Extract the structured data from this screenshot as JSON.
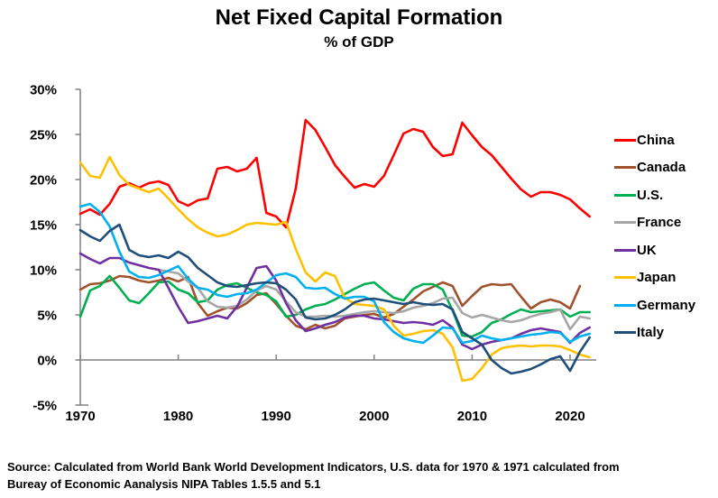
{
  "header": {
    "title": "Net Fixed Capital Formation",
    "subtitle": "% of GDP"
  },
  "source": {
    "line1": "Source:  Calculated from World Bank World Development Indicators, U.S. data for 1970 & 1971 calculated from",
    "line2": "Bureay of Economic Aanalysis NIPA Tables 1.5.5 and 5.1"
  },
  "chart_data": {
    "type": "line",
    "title": "Net Fixed Capital Formation",
    "subtitle": "% of GDP",
    "xlabel": "",
    "ylabel": "",
    "ylim": [
      -5,
      30
    ],
    "grid": "zero-line-only",
    "legend_position": "right",
    "axis_color": "#808080",
    "x": [
      1970,
      1971,
      1972,
      1973,
      1974,
      1975,
      1976,
      1977,
      1978,
      1979,
      1980,
      1981,
      1982,
      1983,
      1984,
      1985,
      1986,
      1987,
      1988,
      1989,
      1990,
      1991,
      1992,
      1993,
      1994,
      1995,
      1996,
      1997,
      1998,
      1999,
      2000,
      2001,
      2002,
      2003,
      2004,
      2005,
      2006,
      2007,
      2008,
      2009,
      2010,
      2011,
      2012,
      2013,
      2014,
      2015,
      2016,
      2017,
      2018,
      2019,
      2020,
      2021,
      2022
    ],
    "x_ticks": [
      1970,
      1980,
      1990,
      2000,
      2010,
      2020
    ],
    "y_ticks": [
      {
        "label": "30%",
        "value": 30
      },
      {
        "label": "25%",
        "value": 25
      },
      {
        "label": "20%",
        "value": 20
      },
      {
        "label": "15%",
        "value": 15
      },
      {
        "label": "10%",
        "value": 10
      },
      {
        "label": "5%",
        "value": 5
      },
      {
        "label": "0%",
        "value": 0
      },
      {
        "label": "-5%",
        "value": -5
      }
    ],
    "series": [
      {
        "name": "China",
        "color": "#FE0000",
        "values": [
          16.2,
          16.7,
          16.1,
          17.3,
          19.2,
          19.6,
          19.1,
          19.6,
          19.8,
          19.4,
          17.6,
          17.1,
          17.7,
          17.9,
          21.2,
          21.4,
          20.9,
          21.2,
          22.4,
          16.3,
          15.9,
          14.7,
          19.0,
          26.6,
          25.5,
          23.6,
          21.6,
          20.3,
          19.1,
          19.5,
          19.2,
          20.4,
          22.7,
          25.1,
          25.6,
          25.3,
          23.6,
          22.6,
          22.8,
          26.3,
          24.9,
          23.6,
          22.7,
          21.4,
          20.1,
          18.9,
          18.1,
          18.6,
          18.6,
          18.3,
          17.8,
          16.8,
          15.9
        ]
      },
      {
        "name": "Canada",
        "color": "#A0522D",
        "values": [
          7.8,
          8.4,
          8.5,
          8.8,
          9.3,
          9.2,
          8.8,
          8.6,
          8.8,
          9.1,
          8.7,
          9.2,
          6.3,
          4.9,
          5.4,
          5.8,
          5.7,
          6.3,
          7.2,
          7.4,
          6.2,
          4.9,
          3.8,
          3.4,
          3.9,
          3.5,
          3.8,
          4.6,
          4.8,
          5.0,
          5.1,
          4.7,
          5.1,
          5.9,
          6.7,
          7.6,
          8.1,
          8.6,
          8.2,
          6.0,
          7.1,
          8.1,
          8.4,
          8.3,
          8.4,
          7.0,
          5.7,
          6.4,
          6.7,
          6.4,
          5.7,
          8.2,
          null
        ]
      },
      {
        "name": "U.S.",
        "color": "#00B050",
        "values": [
          4.8,
          7.7,
          8.2,
          9.3,
          8.0,
          6.6,
          6.3,
          7.4,
          8.6,
          8.7,
          7.8,
          7.4,
          6.4,
          6.6,
          7.8,
          8.3,
          8.5,
          8.0,
          7.5,
          7.2,
          6.5,
          4.8,
          5.0,
          5.6,
          6.0,
          6.2,
          6.7,
          7.3,
          7.9,
          8.4,
          8.6,
          7.7,
          6.9,
          6.6,
          7.9,
          8.4,
          8.4,
          7.8,
          5.5,
          2.7,
          2.6,
          3.1,
          4.1,
          4.5,
          5.1,
          5.6,
          5.3,
          5.4,
          5.5,
          5.6,
          4.8,
          5.3,
          5.3
        ]
      },
      {
        "name": "France",
        "color": "#A6A6A6",
        "values": [
          null,
          null,
          null,
          null,
          null,
          null,
          null,
          null,
          10.0,
          9.8,
          9.6,
          8.7,
          8.0,
          6.5,
          5.9,
          5.8,
          6.0,
          6.7,
          7.7,
          8.2,
          7.8,
          6.5,
          5.3,
          4.8,
          4.8,
          4.9,
          4.8,
          4.9,
          5.1,
          5.3,
          5.4,
          5.3,
          5.2,
          5.4,
          5.8,
          6.0,
          6.3,
          6.8,
          6.9,
          5.2,
          4.7,
          5.0,
          4.7,
          4.4,
          4.2,
          4.4,
          4.8,
          5.1,
          5.3,
          5.6,
          3.4,
          4.8,
          4.6
        ]
      },
      {
        "name": "UK",
        "color": "#7030A0",
        "values": [
          11.8,
          11.2,
          10.7,
          11.3,
          11.3,
          10.8,
          10.5,
          10.2,
          10.0,
          8.0,
          5.9,
          4.1,
          4.3,
          4.6,
          4.9,
          4.6,
          5.9,
          8.0,
          10.2,
          10.4,
          8.8,
          6.3,
          4.4,
          3.2,
          3.5,
          3.9,
          4.2,
          4.7,
          4.9,
          4.9,
          4.6,
          4.5,
          4.3,
          4.1,
          4.2,
          4.1,
          3.9,
          4.4,
          3.6,
          1.7,
          1.2,
          1.7,
          2.0,
          2.2,
          2.4,
          2.9,
          3.3,
          3.5,
          3.3,
          3.1,
          1.9,
          3.0,
          3.6
        ]
      },
      {
        "name": "Japan",
        "color": "#FFC000",
        "values": [
          21.9,
          20.4,
          20.2,
          22.5,
          20.5,
          19.4,
          19.0,
          18.6,
          19.0,
          17.9,
          16.7,
          15.6,
          14.7,
          14.1,
          13.7,
          13.9,
          14.4,
          15.0,
          15.2,
          15.1,
          15.0,
          15.3,
          12.3,
          9.7,
          8.7,
          9.7,
          9.3,
          6.9,
          6.2,
          6.1,
          6.0,
          5.6,
          3.8,
          2.7,
          2.9,
          3.2,
          3.3,
          2.9,
          1.4,
          -2.3,
          -2.1,
          -0.9,
          0.6,
          1.3,
          1.5,
          1.6,
          1.5,
          1.6,
          1.6,
          1.5,
          1.1,
          0.6,
          0.3
        ]
      },
      {
        "name": "Germany",
        "color": "#00B0F0",
        "values": [
          17.0,
          17.3,
          16.4,
          14.8,
          12.0,
          9.8,
          9.2,
          9.1,
          9.4,
          9.9,
          10.4,
          9.0,
          8.0,
          7.8,
          7.2,
          7.0,
          7.3,
          7.4,
          7.8,
          8.6,
          9.4,
          9.6,
          9.2,
          8.0,
          7.9,
          8.0,
          7.3,
          6.8,
          7.0,
          7.0,
          6.5,
          4.2,
          3.1,
          2.4,
          2.1,
          1.9,
          2.7,
          3.6,
          3.5,
          1.9,
          2.1,
          2.7,
          2.4,
          2.2,
          2.4,
          2.6,
          2.8,
          2.9,
          3.1,
          3.0,
          2.0,
          2.6,
          2.9
        ]
      },
      {
        "name": "Italy",
        "color": "#1F4E79",
        "values": [
          14.4,
          13.7,
          13.2,
          14.3,
          15.0,
          12.2,
          11.6,
          11.4,
          11.6,
          11.3,
          12.0,
          11.4,
          10.2,
          9.4,
          8.6,
          8.2,
          8.1,
          8.3,
          8.5,
          8.6,
          8.5,
          7.8,
          6.7,
          4.7,
          4.5,
          4.6,
          5.0,
          5.6,
          6.4,
          6.7,
          6.8,
          6.6,
          6.4,
          6.2,
          6.4,
          6.2,
          6.1,
          6.2,
          5.6,
          3.1,
          2.4,
          1.7,
          0.0,
          -0.9,
          -1.5,
          -1.3,
          -1.0,
          -0.5,
          0.1,
          0.4,
          -1.2,
          0.9,
          2.5
        ]
      }
    ]
  }
}
